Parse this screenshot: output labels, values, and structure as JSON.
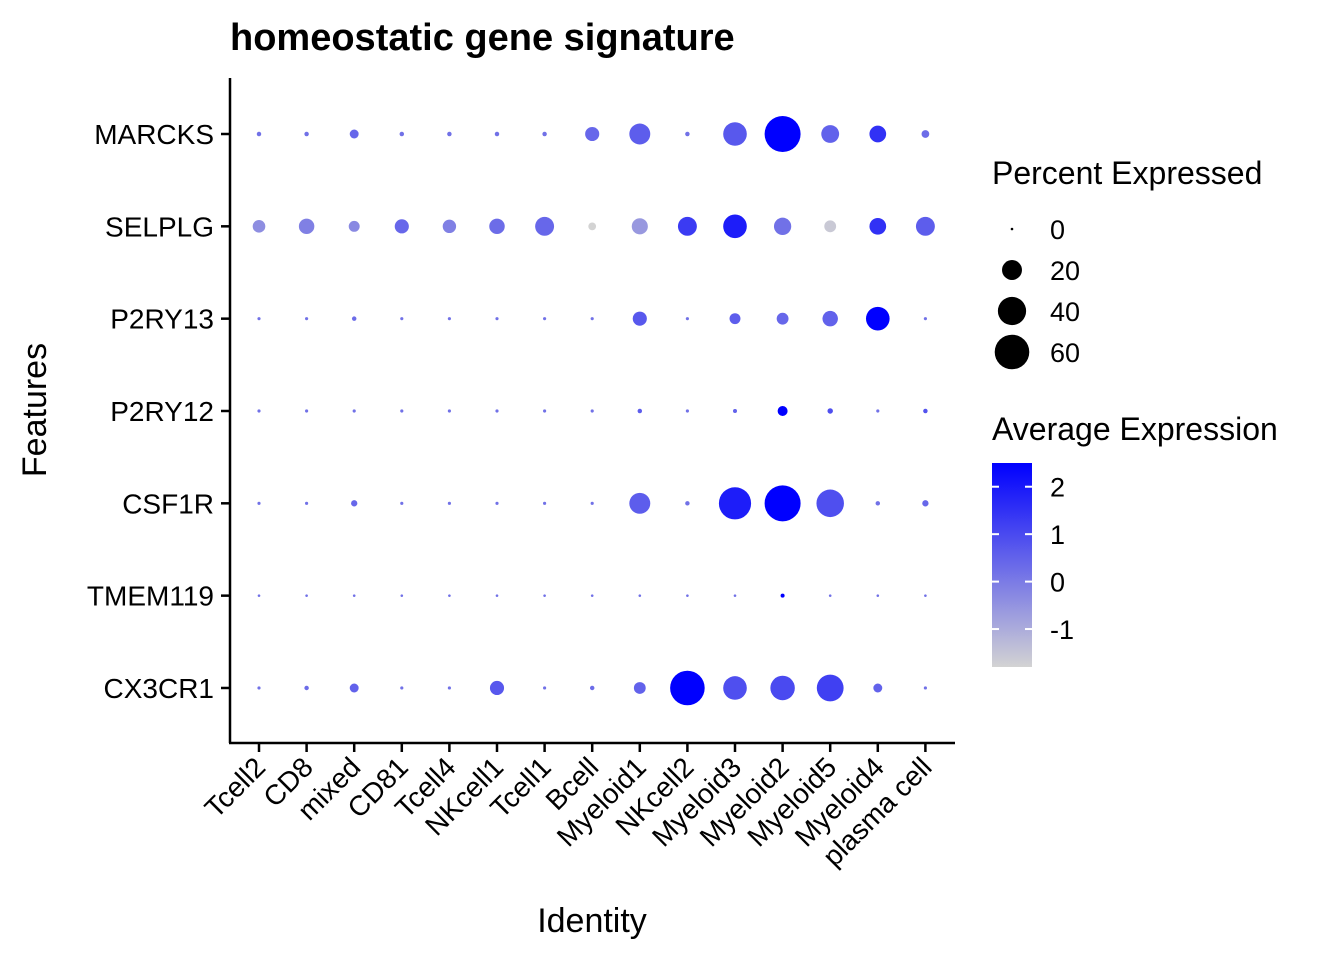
{
  "chart_data": {
    "type": "dot",
    "title": "homeostatic gene signature",
    "xlabel": "Identity",
    "ylabel": "Features",
    "x_categories": [
      "Tcell2",
      "CD8",
      "mixed",
      "CD81",
      "Tcell4",
      "NKcell1",
      "Tcell1",
      "Bcell",
      "Myeloid1",
      "NKcell2",
      "Myeloid3",
      "Myeloid2",
      "Myeloid5",
      "Myeloid4",
      "plasma cell"
    ],
    "y_categories": [
      "MARCKS",
      "SELPLG",
      "P2RY13",
      "P2RY12",
      "CSF1R",
      "TMEM119",
      "CX3CR1"
    ],
    "size_legend": {
      "title": "Percent Expressed",
      "values": [
        0,
        20,
        40,
        60
      ]
    },
    "color_legend": {
      "title": "Average Expression",
      "ticks": [
        -1,
        0,
        1,
        2
      ],
      "range": [
        -1.8,
        2.5
      ],
      "low_color": "#d3d3d3",
      "high_color": "#0000ff"
    },
    "series": [
      {
        "name": "MARCKS",
        "pct": [
          1,
          1,
          4,
          1,
          1,
          1,
          1,
          10,
          22,
          1,
          28,
          65,
          16,
          14,
          3
        ],
        "avg": [
          0.2,
          0.2,
          0.4,
          0.2,
          0.2,
          0.2,
          0.2,
          0.4,
          0.6,
          0.2,
          0.7,
          2.5,
          0.5,
          1.5,
          0.3
        ]
      },
      {
        "name": "SELPLG",
        "pct": [
          8,
          12,
          6,
          10,
          9,
          12,
          18,
          3,
          13,
          18,
          28,
          15,
          7,
          14,
          18
        ],
        "avg": [
          -0.4,
          -0.1,
          -0.3,
          0.4,
          -0.1,
          0.3,
          0.4,
          -1.8,
          -0.6,
          1.3,
          1.9,
          0.2,
          -1.6,
          1.5,
          0.6
        ]
      },
      {
        "name": "P2RY13",
        "pct": [
          0.5,
          0.5,
          1,
          0.5,
          0.5,
          0.5,
          0.5,
          0.5,
          10,
          0.5,
          6,
          7,
          12,
          28,
          0.5
        ],
        "avg": [
          0.2,
          0.2,
          0.3,
          0.2,
          0.2,
          0.2,
          0.2,
          0.2,
          0.7,
          0.2,
          0.6,
          0.4,
          0.5,
          2.5,
          0.2
        ]
      },
      {
        "name": "P2RY12",
        "pct": [
          0.5,
          0.5,
          0.5,
          0.5,
          0.5,
          0.5,
          0.5,
          0.5,
          1,
          0.5,
          0.8,
          5,
          1.5,
          0.5,
          1
        ],
        "avg": [
          0.2,
          0.2,
          0.2,
          0.2,
          0.2,
          0.2,
          0.2,
          0.2,
          0.6,
          0.2,
          0.5,
          2.5,
          0.9,
          0.2,
          0.8
        ]
      },
      {
        "name": "CSF1R",
        "pct": [
          0.5,
          0.5,
          2,
          0.5,
          0.5,
          0.5,
          0.5,
          0.5,
          22,
          1,
          52,
          65,
          38,
          1,
          2
        ],
        "avg": [
          0.2,
          0.2,
          0.4,
          0.2,
          0.2,
          0.2,
          0.2,
          0.2,
          0.6,
          0.2,
          1.9,
          2.5,
          0.9,
          0.2,
          0.4
        ]
      },
      {
        "name": "TMEM119",
        "pct": [
          0.3,
          0.3,
          0.3,
          0.3,
          0.3,
          0.3,
          0.3,
          0.3,
          0.3,
          0.3,
          0.3,
          0.8,
          0.3,
          0.3,
          0.3
        ],
        "avg": [
          0.2,
          0.2,
          0.2,
          0.2,
          0.2,
          0.2,
          0.2,
          0.2,
          0.2,
          0.2,
          0.2,
          2.5,
          0.2,
          0.2,
          0.2
        ]
      },
      {
        "name": "CX3CR1",
        "pct": [
          0.5,
          1,
          4,
          0.5,
          0.5,
          10,
          0.5,
          1,
          7,
          60,
          28,
          30,
          36,
          4,
          0.5
        ],
        "avg": [
          0.2,
          0.3,
          0.5,
          0.2,
          0.2,
          0.7,
          0.2,
          0.3,
          0.5,
          2.5,
          0.9,
          1.0,
          1.2,
          0.5,
          0.2
        ]
      }
    ]
  }
}
